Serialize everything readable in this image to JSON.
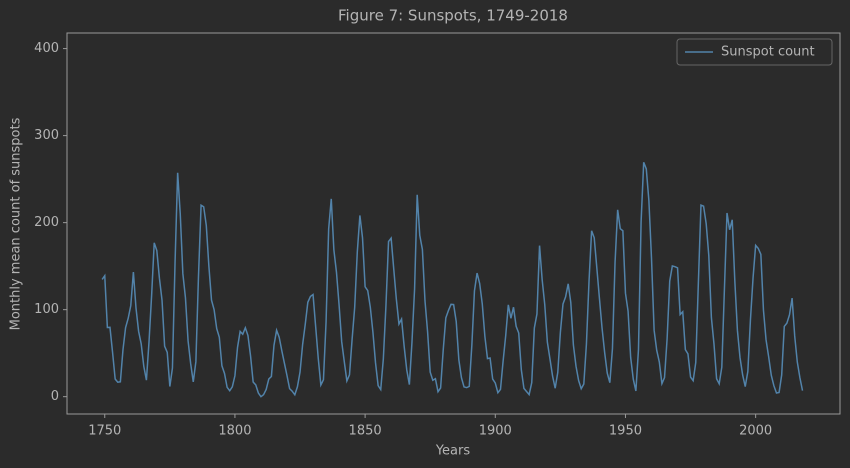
{
  "chart_data": {
    "type": "line",
    "title": "Figure 7: Sunspots, 1749-2018",
    "x_label": "Years",
    "y_label": "Monthly mean count of sunspots",
    "x": [
      1749,
      1750,
      1751,
      1752,
      1753,
      1754,
      1755,
      1756,
      1757,
      1758,
      1759,
      1760,
      1761,
      1762,
      1763,
      1764,
      1765,
      1766,
      1767,
      1768,
      1769,
      1770,
      1771,
      1772,
      1773,
      1774,
      1775,
      1776,
      1777,
      1778,
      1779,
      1780,
      1781,
      1782,
      1783,
      1784,
      1785,
      1786,
      1787,
      1788,
      1789,
      1790,
      1791,
      1792,
      1793,
      1794,
      1795,
      1796,
      1797,
      1798,
      1799,
      1800,
      1801,
      1802,
      1803,
      1804,
      1805,
      1806,
      1807,
      1808,
      1809,
      1810,
      1811,
      1812,
      1813,
      1814,
      1815,
      1816,
      1817,
      1818,
      1819,
      1820,
      1821,
      1822,
      1823,
      1824,
      1825,
      1826,
      1827,
      1828,
      1829,
      1830,
      1831,
      1832,
      1833,
      1834,
      1835,
      1836,
      1837,
      1838,
      1839,
      1840,
      1841,
      1842,
      1843,
      1844,
      1845,
      1846,
      1847,
      1848,
      1849,
      1850,
      1851,
      1852,
      1853,
      1854,
      1855,
      1856,
      1857,
      1858,
      1859,
      1860,
      1861,
      1862,
      1863,
      1864,
      1865,
      1866,
      1867,
      1868,
      1869,
      1870,
      1871,
      1872,
      1873,
      1874,
      1875,
      1876,
      1877,
      1878,
      1879,
      1880,
      1881,
      1882,
      1883,
      1884,
      1885,
      1886,
      1887,
      1888,
      1889,
      1890,
      1891,
      1892,
      1893,
      1894,
      1895,
      1896,
      1897,
      1898,
      1899,
      1900,
      1901,
      1902,
      1903,
      1904,
      1905,
      1906,
      1907,
      1908,
      1909,
      1910,
      1911,
      1912,
      1913,
      1914,
      1915,
      1916,
      1917,
      1918,
      1919,
      1920,
      1921,
      1922,
      1923,
      1924,
      1925,
      1926,
      1927,
      1928,
      1929,
      1930,
      1931,
      1932,
      1933,
      1934,
      1935,
      1936,
      1937,
      1938,
      1939,
      1940,
      1941,
      1942,
      1943,
      1944,
      1945,
      1946,
      1947,
      1948,
      1949,
      1950,
      1951,
      1952,
      1953,
      1954,
      1955,
      1956,
      1957,
      1958,
      1959,
      1960,
      1961,
      1962,
      1963,
      1964,
      1965,
      1966,
      1967,
      1968,
      1969,
      1970,
      1971,
      1972,
      1973,
      1974,
      1975,
      1976,
      1977,
      1978,
      1979,
      1980,
      1981,
      1982,
      1983,
      1984,
      1985,
      1986,
      1987,
      1988,
      1989,
      1990,
      1991,
      1992,
      1993,
      1994,
      1995,
      1996,
      1997,
      1998,
      1999,
      2000,
      2001,
      2002,
      2003,
      2004,
      2005,
      2006,
      2007,
      2008,
      2009,
      2010,
      2011,
      2012,
      2013,
      2014,
      2015,
      2016,
      2017,
      2018
    ],
    "series": [
      {
        "name": "Sunspot count",
        "color": "#5283aa",
        "values": [
          134.7,
          139,
          79.5,
          79.7,
          51,
          20.3,
          16.6,
          17.1,
          54,
          79.3,
          90,
          104.8,
          143.2,
          102,
          75.2,
          60.7,
          34.8,
          19,
          63,
          116.3,
          176.8,
          168,
          136,
          110.8,
          58,
          51,
          11.7,
          33,
          154.2,
          257.3,
          209.8,
          141.3,
          113.5,
          64.2,
          38,
          17,
          40.2,
          138.2,
          220,
          218.2,
          196.8,
          149.8,
          111,
          100,
          78.2,
          68.3,
          35.5,
          26.7,
          10.7,
          6.8,
          11.3,
          24.2,
          56.7,
          75,
          71.8,
          79.2,
          70.3,
          46.8,
          16.8,
          13.5,
          4.2,
          0,
          2.3,
          8.3,
          20.3,
          23.2,
          59,
          76.3,
          68.3,
          52.9,
          38.5,
          24.2,
          9.2,
          6.3,
          2.2,
          11.4,
          28.2,
          59.9,
          83,
          108.5,
          115.2,
          117.4,
          80.8,
          44.3,
          13.4,
          19.5,
          85.8,
          192.7,
          227.3,
          168.7,
          143,
          105.5,
          63.3,
          40.3,
          18.1,
          25.1,
          65.8,
          102.7,
          166.3,
          208.3,
          182.5,
          126.3,
          122,
          102.7,
          74.1,
          39,
          12.7,
          8.2,
          43.4,
          104.4,
          178.3,
          182.2,
          146.6,
          112.1,
          83.5,
          89.2,
          57.8,
          30.7,
          13.9,
          62.8,
          123.6,
          232,
          185.3,
          169.2,
          110.1,
          74.5,
          28.3,
          18.9,
          20.7,
          5.7,
          10,
          53.7,
          90.5,
          99,
          106.1,
          105.8,
          86.3,
          42.4,
          21.8,
          11.2,
          10.4,
          11.8,
          59.5,
          121.7,
          142,
          130,
          106.6,
          69.4,
          43.8,
          44.4,
          20.2,
          15.7,
          4.6,
          8.5,
          40.8,
          70.1,
          105.5,
          90.1,
          102.8,
          80.9,
          73.2,
          30.9,
          9.5,
          6,
          2.4,
          16.1,
          79,
          95,
          173.6,
          134.6,
          105.7,
          62.7,
          43.5,
          23.7,
          9.7,
          27.9,
          74,
          106.5,
          114.7,
          129.7,
          108.2,
          59.4,
          35.1,
          18.6,
          9.2,
          14.6,
          60.2,
          132.8,
          190.6,
          182.6,
          148,
          113,
          79.2,
          50.8,
          27.1,
          16.1,
          55.3,
          154.3,
          214.7,
          193,
          190.7,
          118.9,
          98.3,
          45,
          20.1,
          6.6,
          54.2,
          200.7,
          269.3,
          261.7,
          225.1,
          159,
          76.4,
          53.4,
          39.9,
          15,
          22,
          66.8,
          132.9,
          150.2,
          149.4,
          148,
          94.4,
          97.6,
          54.1,
          49.2,
          22.5,
          18.4,
          39.3,
          131,
          220.1,
          218.9,
          198.9,
          162.4,
          91,
          60.5,
          20.6,
          14.8,
          33.9,
          123,
          211.1,
          191.8,
          203.3,
          133,
          76.1,
          44.9,
          25.1,
          11.6,
          28.9,
          88.3,
          136.3,
          173.9,
          170.4,
          163.6,
          99.3,
          65.3,
          45.8,
          24.7,
          12.6,
          4.2,
          4.8,
          24.9,
          80.8,
          84.5,
          94,
          113.3,
          69.8,
          39.8,
          21.7,
          7
        ]
      }
    ],
    "xlim": [
      1735.5,
      2032.4
    ],
    "ylim": [
      -19.9,
      417.9
    ],
    "xticks": [
      1750,
      1800,
      1850,
      1900,
      1950,
      2000
    ],
    "yticks": [
      0,
      100,
      200,
      300,
      400
    ],
    "legend": "upper right",
    "grid": false
  }
}
